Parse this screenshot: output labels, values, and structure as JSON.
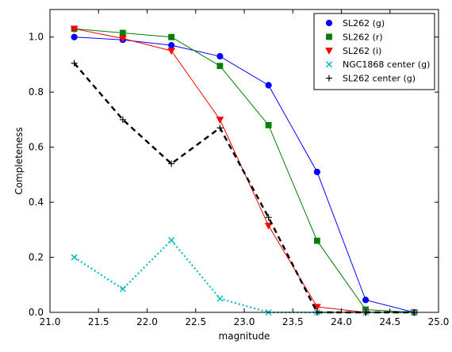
{
  "chart_data": {
    "type": "line",
    "title": "",
    "xlabel": "magnitude",
    "ylabel": "Completeness",
    "xlim": [
      21.0,
      25.0
    ],
    "ylim": [
      0.0,
      1.1
    ],
    "xticks": [
      21.0,
      21.5,
      22.0,
      22.5,
      23.0,
      23.5,
      24.0,
      24.5,
      25.0
    ],
    "xtick_labels": [
      "21.0",
      "21.5",
      "22.0",
      "22.5",
      "23.0",
      "23.5",
      "24.0",
      "24.5",
      "25.0"
    ],
    "yticks": [
      0.0,
      0.2,
      0.4,
      0.6,
      0.8,
      1.0
    ],
    "ytick_labels": [
      "0.0",
      "0.2",
      "0.4",
      "0.6",
      "0.8",
      "1.0"
    ],
    "grid": false,
    "legend_position": "top-right",
    "x": [
      21.25,
      21.75,
      22.25,
      22.75,
      23.25,
      23.75,
      24.25,
      24.75
    ],
    "series": [
      {
        "name": "SL262 (g)",
        "color": "#0000ff",
        "marker": "circle",
        "line": "solid",
        "values": [
          1.0,
          0.99,
          0.97,
          0.93,
          0.825,
          0.51,
          0.045,
          0.0
        ]
      },
      {
        "name": "SL262 (r)",
        "color": "#007f00",
        "marker": "square",
        "line": "solid",
        "values": [
          1.03,
          1.015,
          1.0,
          0.895,
          0.68,
          0.26,
          0.01,
          0.0
        ]
      },
      {
        "name": "SL262 (i)",
        "color": "#ff0000",
        "marker": "triangle-down",
        "line": "solid",
        "values": [
          1.03,
          0.995,
          0.95,
          0.7,
          0.315,
          0.02,
          0.0,
          0.0
        ]
      },
      {
        "name": "NGC1868 center (g)",
        "color": "#00bfbf",
        "marker": "x",
        "line": "dotted",
        "values": [
          0.2,
          0.085,
          0.262,
          0.05,
          0.0,
          0.0,
          0.0,
          0.0
        ]
      },
      {
        "name": "SL262 center (g)",
        "color": "#000000",
        "marker": "plus",
        "line": "dashed",
        "values": [
          0.905,
          0.7,
          0.54,
          0.67,
          0.345,
          0.0,
          0.0,
          0.0
        ]
      }
    ]
  }
}
